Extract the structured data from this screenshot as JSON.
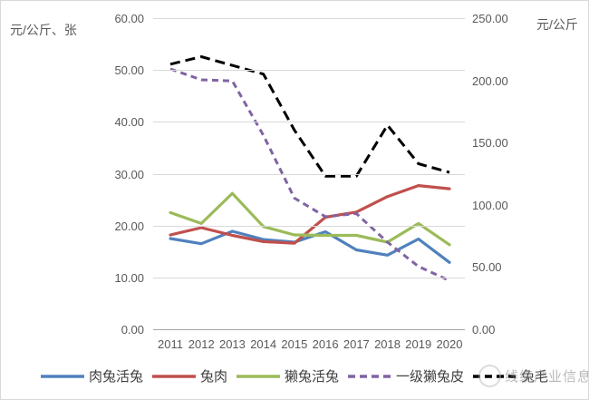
{
  "units": {
    "left_axis_unit": "元/公斤、张",
    "right_axis_unit": "元/公斤"
  },
  "watermark": {
    "text": "线缆产业信息"
  },
  "chart_data": {
    "type": "line",
    "title": "",
    "categories": [
      "2011",
      "2012",
      "2013",
      "2014",
      "2015",
      "2016",
      "2017",
      "2018",
      "2019",
      "2020"
    ],
    "grid": true,
    "legend_position": "bottom",
    "left_axis": {
      "label": "元/公斤、张",
      "min": 0,
      "max": 60,
      "tick_labels": [
        "60.00",
        "50.00",
        "40.00",
        "30.00",
        "20.00",
        "10.00",
        "0.00"
      ]
    },
    "right_axis": {
      "label": "元/公斤",
      "min": 0,
      "max": 250,
      "tick_labels": [
        "250.00",
        "200.00",
        "150.00",
        "100.00",
        "50.00",
        "0.00"
      ]
    },
    "series": [
      {
        "name": "肉兔活兔",
        "axis": "left",
        "color": "#4F81BD",
        "dash": "",
        "values": [
          17.5,
          16.5,
          18.9,
          17.3,
          16.8,
          18.8,
          15.3,
          14.3,
          17.4,
          12.9
        ]
      },
      {
        "name": "兔肉",
        "axis": "left",
        "color": "#C0504D",
        "dash": "",
        "values": [
          18.2,
          19.6,
          18.1,
          16.9,
          16.6,
          21.6,
          22.6,
          25.6,
          27.7,
          27.1
        ]
      },
      {
        "name": "獭兔活兔",
        "axis": "left",
        "color": "#9BBB59",
        "dash": "",
        "values": [
          22.5,
          20.4,
          26.2,
          19.8,
          18.2,
          18.1,
          18.1,
          16.8,
          20.4,
          16.3
        ]
      },
      {
        "name": "一级獭兔皮",
        "axis": "left",
        "color": "#8064A2",
        "dash": "7 5",
        "values": [
          50.2,
          48.1,
          47.9,
          37.4,
          25.3,
          21.7,
          22.3,
          16.8,
          12.1,
          9.4
        ]
      },
      {
        "name": "兔毛",
        "axis": "right",
        "color": "#000000",
        "dash": "11 6",
        "values": [
          213,
          219,
          212,
          205,
          160,
          123,
          123,
          164,
          133,
          126
        ]
      }
    ]
  }
}
